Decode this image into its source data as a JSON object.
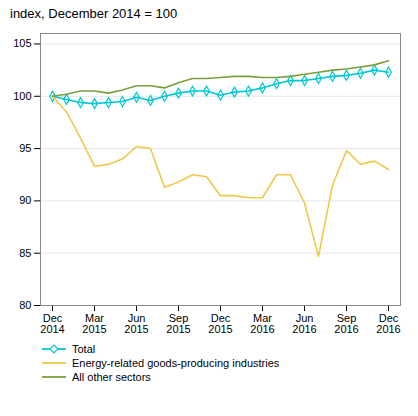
{
  "chart_data": {
    "type": "line",
    "title": "index, December 2014 = 100",
    "categories": [
      "Dec\n2014",
      null,
      null,
      "Mar\n2015",
      null,
      null,
      "Jun\n2015",
      null,
      null,
      "Sep\n2015",
      null,
      null,
      "Dec\n2015",
      null,
      null,
      "Mar\n2016",
      null,
      null,
      "Jun\n2016",
      null,
      null,
      "Sep\n2016",
      null,
      null,
      "Dec\n2016"
    ],
    "series": [
      {
        "name": "Total",
        "color": "#00c8d2",
        "marker": "diamond",
        "values": [
          100.0,
          99.7,
          99.4,
          99.3,
          99.4,
          99.5,
          99.9,
          99.6,
          100.0,
          100.3,
          100.5,
          100.5,
          100.1,
          100.4,
          100.5,
          100.8,
          101.2,
          101.5,
          101.5,
          101.7,
          101.9,
          102.0,
          102.2,
          102.5,
          102.3
        ]
      },
      {
        "name": "Energy-related goods-producing industries",
        "color": "#f0c84a",
        "values": [
          100.0,
          98.5,
          96.0,
          93.3,
          93.5,
          94.0,
          95.2,
          95.0,
          91.3,
          91.8,
          92.5,
          92.3,
          90.5,
          90.5,
          90.3,
          90.3,
          92.5,
          92.5,
          89.8,
          84.7,
          91.5,
          94.8,
          93.5,
          93.8,
          93.0
        ]
      },
      {
        "name": "All other sectors",
        "color": "#7a9e3b",
        "values": [
          100.0,
          100.2,
          100.5,
          100.5,
          100.3,
          100.6,
          101.0,
          101.0,
          100.8,
          101.3,
          101.7,
          101.7,
          101.8,
          101.9,
          101.9,
          101.8,
          101.8,
          101.9,
          102.1,
          102.3,
          102.5,
          102.6,
          102.8,
          103.0,
          103.4
        ]
      }
    ],
    "ylim": [
      80,
      106
    ],
    "yticks": [
      80,
      85,
      90,
      95,
      100,
      105
    ],
    "grid": true,
    "legend": "lower left"
  }
}
